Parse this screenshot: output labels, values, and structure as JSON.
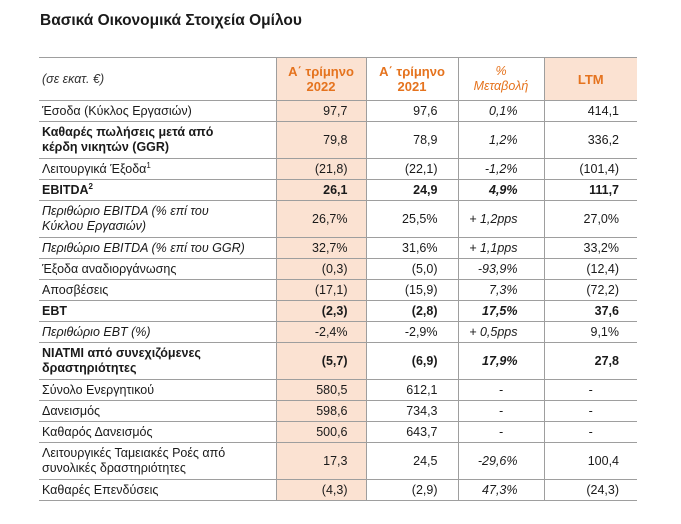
{
  "title": "Βασικά Οικονομικά Στοιχεία Ομίλου",
  "header": {
    "unit": "(σε εκατ. €)",
    "col1": [
      "Α΄ τρίμηνο",
      "2022"
    ],
    "col2": [
      "Α΄ τρίμηνο",
      "2021"
    ],
    "col3": [
      "%",
      "Μεταβολή"
    ],
    "col4": "LTM"
  },
  "rows": [
    {
      "label": [
        "Έσοδα (Κύκλος Εργασιών)"
      ],
      "v1": "97,7",
      "v2": "97,6",
      "v3": "0,1%",
      "v4": "414,1",
      "style": ""
    },
    {
      "label": [
        "Καθαρές πωλήσεις μετά από",
        "κέρδη νικητών (GGR)"
      ],
      "v1": "79,8",
      "v2": "78,9",
      "v3": "1,2%",
      "v4": "336,2",
      "style": "bold-label"
    },
    {
      "label": [
        "Λειτουργικά Έξοδα"
      ],
      "sup": "1",
      "v1": "(21,8)",
      "v2": "(22,1)",
      "v3": "-1,2%",
      "v4": "(101,4)",
      "style": ""
    },
    {
      "label": [
        "EBITDA"
      ],
      "sup": "2",
      "v1": "26,1",
      "v2": "24,9",
      "v3": "4,9%",
      "v4": "111,7",
      "style": "bold"
    },
    {
      "label": [
        "Περιθώριο EBITDA (% επί του",
        "Κύκλου Εργασιών)"
      ],
      "v1": "26,7%",
      "v2": "25,5%",
      "v3": "+ 1,2pps",
      "v4": "27,0%",
      "style": "ital"
    },
    {
      "label": [
        "Περιθώριο EBITDA (% επί του GGR)"
      ],
      "v1": "32,7%",
      "v2": "31,6%",
      "v3": "+ 1,1pps",
      "v4": "33,2%",
      "style": "ital"
    },
    {
      "label": [
        "Έξοδα αναδιοργάνωσης"
      ],
      "v1": "(0,3)",
      "v2": "(5,0)",
      "v3": "-93,9%",
      "v4": "(12,4)",
      "style": ""
    },
    {
      "label": [
        "Αποσβέσεις"
      ],
      "v1": "(17,1)",
      "v2": "(15,9)",
      "v3": "7,3%",
      "v4": "(72,2)",
      "style": ""
    },
    {
      "label": [
        "EBT"
      ],
      "v1": "(2,3)",
      "v2": "(2,8)",
      "v3": "17,5%",
      "v4": "37,6",
      "style": "bold"
    },
    {
      "label": [
        "Περιθώριο EBT (%)"
      ],
      "v1": "-2,4%",
      "v2": "-2,9%",
      "v3": "+ 0,5pps",
      "v4": "9,1%",
      "style": "ital"
    },
    {
      "label": [
        "ΝΙΑΤΜΙ από συνεχιζόμενες",
        "δραστηριότητες"
      ],
      "v1": "(5,7)",
      "v2": "(6,9)",
      "v3": "17,9%",
      "v4": "27,8",
      "style": "bold"
    },
    {
      "label": [
        "Σύνολο Ενεργητικού"
      ],
      "v1": "580,5",
      "v2": "612,1",
      "v3": "-",
      "v4": "-",
      "style": ""
    },
    {
      "label": [
        "Δανεισμός"
      ],
      "v1": "598,6",
      "v2": "734,3",
      "v3": "-",
      "v4": "-",
      "style": ""
    },
    {
      "label": [
        "Καθαρός Δανεισμός"
      ],
      "v1": "500,6",
      "v2": "643,7",
      "v3": "-",
      "v4": "-",
      "style": ""
    },
    {
      "label": [
        "Λειτουργικές Ταμειακές Ροές από",
        "συνολικές δραστηριότητες"
      ],
      "v1": "17,3",
      "v2": "24,5",
      "v3": "-29,6%",
      "v4": "100,4",
      "style": ""
    },
    {
      "label": [
        "Καθαρές Επενδύσεις"
      ],
      "v1": "(4,3)",
      "v2": "(2,9)",
      "v3": "47,3%",
      "v4": "(24,3)",
      "style": ""
    }
  ]
}
